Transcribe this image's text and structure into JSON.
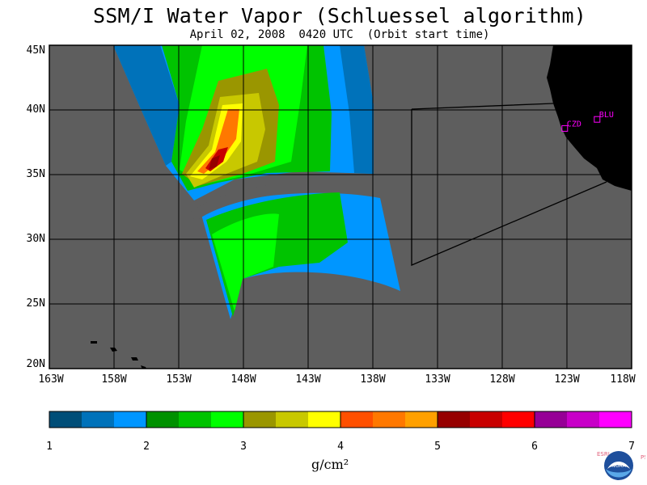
{
  "title": "SSM/I Water Vapor (Schluessel algorithm)",
  "subtitle": "April 02, 2008  0420 UTC  (Orbit start time)",
  "lat_labels": [
    "45N",
    "40N",
    "35N",
    "30N",
    "25N",
    "20N"
  ],
  "lon_labels": [
    "163W",
    "158W",
    "153W",
    "148W",
    "143W",
    "138W",
    "133W",
    "128W",
    "123W",
    "118W"
  ],
  "colorbar": {
    "ticks": [
      "1",
      "2",
      "3",
      "4",
      "5",
      "6",
      "7"
    ],
    "colors": [
      "#004e78",
      "#0072ba",
      "#0096ff",
      "#009100",
      "#00c300",
      "#00ff00",
      "#9a9600",
      "#c8c800",
      "#ffff00",
      "#ff5000",
      "#ff7800",
      "#ffa000",
      "#960000",
      "#c80000",
      "#ff0000",
      "#960096",
      "#c800c8",
      "#ff00ff"
    ],
    "units": "g/cm²"
  },
  "stations": [
    {
      "name": "CZD",
      "lat": 38.6,
      "lon": -123.2
    },
    {
      "name": "BLU",
      "lat": 39.3,
      "lon": -120.7
    }
  ],
  "logo": {
    "left_text": "ESRL",
    "right_text": "PSD",
    "center_text": "NOAA",
    "colors": {
      "left": "#e0607a",
      "right": "#e0607a",
      "outer": "#1e4f9c",
      "inner": "#5aa8e8"
    }
  },
  "colors": {
    "ocean_background": "#5e5e5e",
    "land": "#000000",
    "grid": "#000000",
    "station_marker": "#ff00ff"
  }
}
